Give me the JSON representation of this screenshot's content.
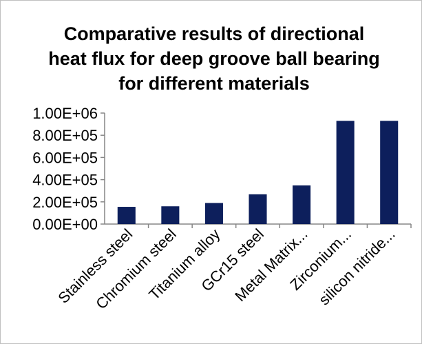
{
  "chart_data": {
    "type": "bar",
    "title_lines": [
      "Comparative results of directional",
      "heat flux for deep groove ball bearing",
      "for different materials"
    ],
    "categories": [
      "Stainless steel",
      "Chromium steel",
      "Titanium alloy",
      "GCr15 steel",
      "Metal Matrix...",
      "Zirconium...",
      "silicon nitride..."
    ],
    "values": [
      155000,
      160000,
      190000,
      268000,
      348000,
      930000,
      930000
    ],
    "ylim": [
      0,
      1000000
    ],
    "yticks": [
      0,
      200000,
      400000,
      600000,
      800000,
      1000000
    ],
    "ytick_labels": [
      "0.00E+00",
      "2.00E+05",
      "4.00E+05",
      "6.00E+05",
      "8.00E+05",
      "1.00E+06"
    ],
    "bar_color": "#0d1f5c",
    "legend": "none",
    "grid": false
  }
}
